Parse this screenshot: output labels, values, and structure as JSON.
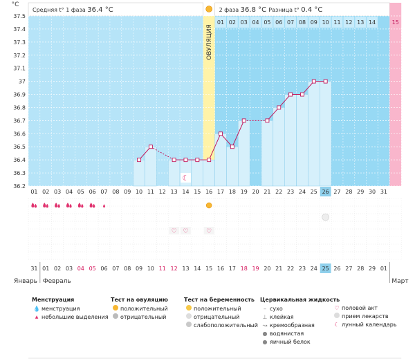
{
  "header": {
    "phase1_label": "Средняя t° 1 фаза",
    "phase1_value": "36.4 °C",
    "phase2_label": "2 фаза",
    "phase2_value": "36.8 °C",
    "diff_label": "Разница t°",
    "diff_value": "0.4 °C",
    "ovulation_label": "ОВУЛЯЦИЯ",
    "y_unit": "°C"
  },
  "colors": {
    "phase1": "#b6e4f8",
    "phase2": "#97d9f4",
    "ovulation": "#fff3a8",
    "next_cycle": "#f9b6cc",
    "line": "#c2185b",
    "bar": "#d6f0fb",
    "bar_border": "#7cc6e8",
    "accent_day": "#8fd0ec"
  },
  "chart_data": {
    "type": "line",
    "ylim": [
      36.2,
      37.5
    ],
    "yticks": [
      "36.2",
      "36.3",
      "36.4",
      "36.5",
      "36.6",
      "36.7",
      "36.8",
      "36.9",
      "37",
      "37.1",
      "37.2",
      "37.3",
      "37.4",
      "37.5"
    ],
    "x": [
      "01",
      "02",
      "03",
      "04",
      "05",
      "06",
      "07",
      "08",
      "09",
      "10",
      "11",
      "12",
      "13",
      "14",
      "15",
      "16",
      "17",
      "18",
      "19",
      "20",
      "21",
      "22",
      "23",
      "24",
      "25",
      "26",
      "27",
      "28",
      "29",
      "30",
      "31"
    ],
    "values": [
      null,
      null,
      null,
      null,
      null,
      null,
      null,
      null,
      null,
      36.4,
      36.5,
      null,
      36.4,
      36.4,
      36.4,
      36.4,
      36.6,
      36.5,
      36.7,
      null,
      36.7,
      36.8,
      36.9,
      36.9,
      37.0,
      37.0,
      null,
      null,
      null,
      null,
      null
    ],
    "ovulation_day": "16",
    "phase2_day_numbers": [
      "01",
      "02",
      "03",
      "04",
      "05",
      "06",
      "07",
      "08",
      "09",
      "10",
      "11",
      "12",
      "13",
      "14"
    ],
    "next_cycle_day": "15",
    "current_day": "26"
  },
  "events": {
    "menstruation_days": [
      "01",
      "02",
      "03",
      "04",
      "05",
      "06"
    ],
    "spotting_days": [
      "07"
    ],
    "ovulation_test_positive_day": "16",
    "intercourse_days": [
      "13",
      "14",
      "16"
    ],
    "lunar_day": "14",
    "medicine_day": "26"
  },
  "calendar": {
    "dates": [
      "31",
      "01",
      "02",
      "03",
      "04",
      "05",
      "06",
      "07",
      "08",
      "09",
      "10",
      "11",
      "12",
      "13",
      "14",
      "15",
      "16",
      "17",
      "18",
      "19",
      "20",
      "21",
      "22",
      "23",
      "24",
      "25",
      "26",
      "27",
      "28",
      "29",
      "01"
    ],
    "red_dates": [
      "04",
      "05",
      "11",
      "12",
      "18",
      "19",
      "26"
    ],
    "months": [
      "Январь",
      "Февраль",
      "Март"
    ]
  },
  "legend": {
    "menstruation": {
      "title": "Менструация",
      "items": [
        "менструация",
        "небольшие выделения"
      ]
    },
    "ovulation_test": {
      "title": "Тест на овуляцию",
      "items": [
        "положительный",
        "отрицательный"
      ]
    },
    "pregnancy_test": {
      "title": "Тест на беременность",
      "items": [
        "положительный",
        "отрицательный",
        "слабоположительный"
      ]
    },
    "cervical": {
      "title": "Цервикальная жидкость",
      "items": [
        "сухо",
        "клейкая",
        "кремообразная",
        "водянистая",
        "яичный белок"
      ]
    },
    "other": {
      "items": [
        "половой акт",
        "прием лекарств",
        "лунный календарь"
      ]
    }
  }
}
